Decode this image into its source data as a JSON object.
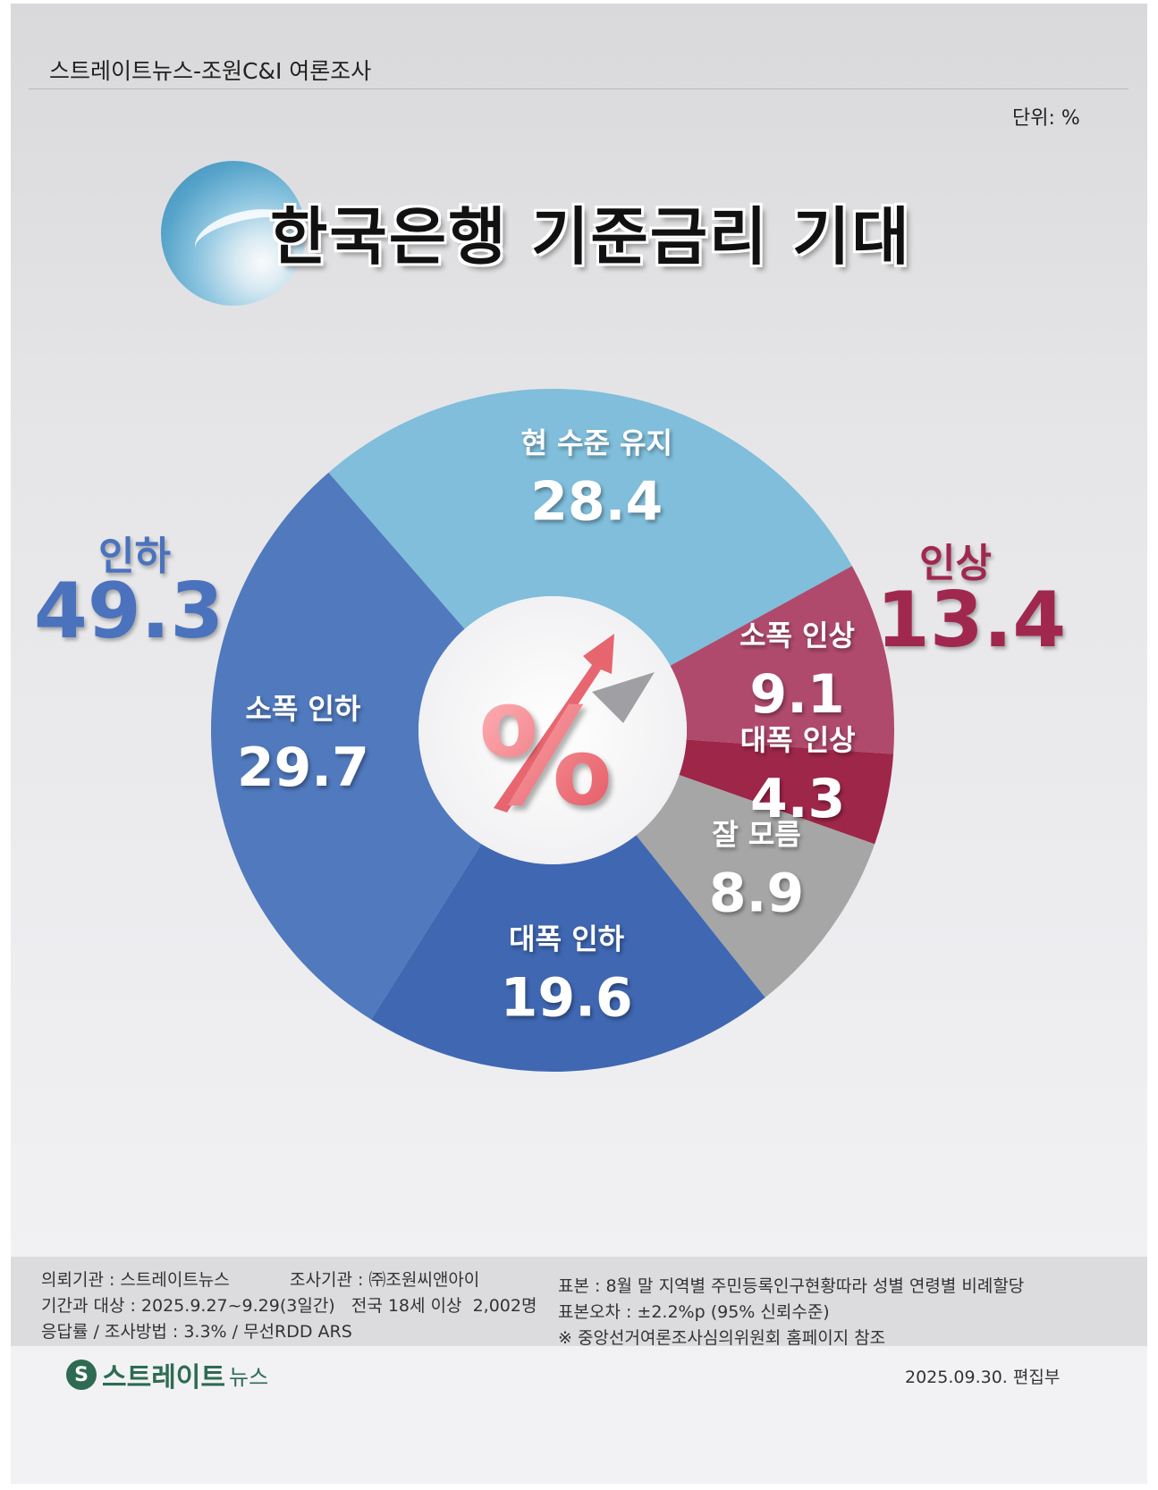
{
  "header": {
    "survey_title": "스트레이트뉴스-조원C&I 여론조사",
    "unit": "단위: %"
  },
  "title": "한국은행 기준금리 기대",
  "groups": [
    {
      "label": "인하",
      "value": "49.3",
      "color": "#4a72bd"
    },
    {
      "label": "인상",
      "value": "13.4",
      "color": "#a0284e"
    }
  ],
  "center_symbol": "%",
  "chart_data": {
    "type": "pie",
    "variant": "donut",
    "categories": [
      "현 수준 유지",
      "소폭 인상",
      "대폭 인상",
      "잘 모름",
      "대폭 인하",
      "소폭 인하"
    ],
    "values": [
      28.4,
      9.1,
      4.3,
      8.9,
      19.6,
      29.7
    ],
    "colors": [
      "#80bedb",
      "#b04a6c",
      "#9e2649",
      "#a6a6a6",
      "#3f67b2",
      "#5079be"
    ],
    "legend": "none"
  },
  "footer": {
    "client": "의뢰기관 : 스트레이트뉴스",
    "agency": "조사기관 : ㈜조원씨앤아이",
    "period": "기간과 대상 : 2025.9.27~9.29(3일간)   전국 18세 이상  2,002명",
    "response": "응답률 / 조사방법 : 3.3% / 무선RDD ARS",
    "sample": "표본 : 8월 말 지역별 주민등록인구현황따라 성별 연령별 비례할당",
    "error": "표본오차 : ±2.2%p (95% 신뢰수준)",
    "note": "※ 중앙선거여론조사심의위원회 홈페이지 참조",
    "brand": "스트레이트",
    "brand_sub": "뉴스",
    "date": "2025.09.30. 편집부"
  }
}
